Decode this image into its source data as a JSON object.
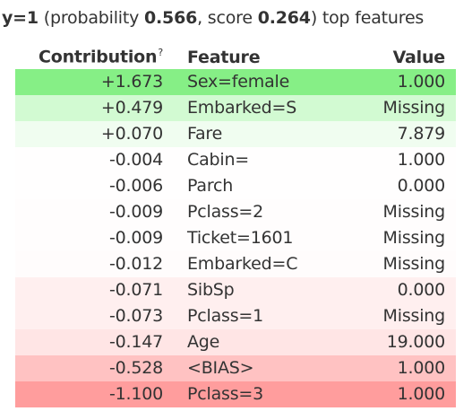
{
  "header": {
    "target_label": "y=1",
    "probability_prefix": "(probability",
    "probability_value": "0.566",
    "score_prefix": ", score",
    "score_value": "0.264",
    "suffix": ") top features"
  },
  "table": {
    "columns": {
      "contribution": "Contribution",
      "help_mark": "?",
      "feature": "Feature",
      "value": "Value"
    },
    "rows": [
      {
        "contribution": "+1.673",
        "feature": "Sex=female",
        "value": "1.000",
        "color": "#86ef86"
      },
      {
        "contribution": "+0.479",
        "feature": "Embarked=S",
        "value": "Missing",
        "color": "#d2fad2"
      },
      {
        "contribution": "+0.070",
        "feature": "Fare",
        "value": "7.879",
        "color": "#f0fdf0"
      },
      {
        "contribution": "-0.004",
        "feature": "Cabin=",
        "value": "1.000",
        "color": "#fffefe"
      },
      {
        "contribution": "-0.006",
        "feature": "Parch",
        "value": "0.000",
        "color": "#fffefe"
      },
      {
        "contribution": "-0.009",
        "feature": "Pclass=2",
        "value": "Missing",
        "color": "#fffdfd"
      },
      {
        "contribution": "-0.009",
        "feature": "Ticket=1601",
        "value": "Missing",
        "color": "#fffdfd"
      },
      {
        "contribution": "-0.012",
        "feature": "Embarked=C",
        "value": "Missing",
        "color": "#fffcfc"
      },
      {
        "contribution": "-0.071",
        "feature": "SibSp",
        "value": "0.000",
        "color": "#ffefef"
      },
      {
        "contribution": "-0.073",
        "feature": "Pclass=1",
        "value": "Missing",
        "color": "#ffefef"
      },
      {
        "contribution": "-0.147",
        "feature": "Age",
        "value": "19.000",
        "color": "#ffe5e5"
      },
      {
        "contribution": "-0.528",
        "feature": "<BIAS>",
        "value": "1.000",
        "color": "#ffc2c2"
      },
      {
        "contribution": "-1.100",
        "feature": "Pclass=3",
        "value": "1.000",
        "color": "#ff9d9d"
      }
    ]
  }
}
